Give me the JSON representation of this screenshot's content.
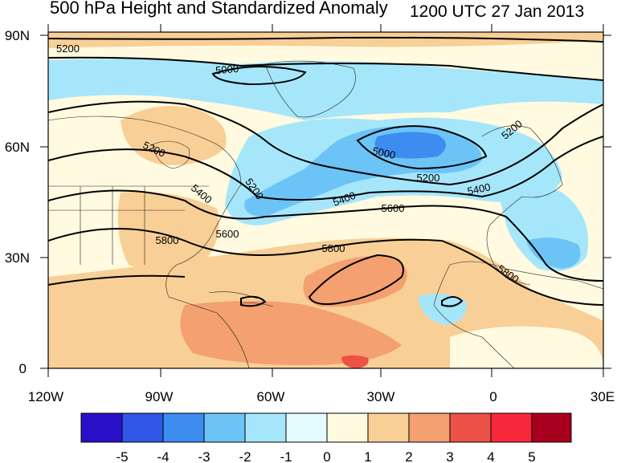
{
  "title": "500 hPa Height and Standardized Anomaly",
  "valid_time": "1200 UTC 27 Jan 2013",
  "lat_labels": [
    "90N",
    "60N",
    "30N",
    "0"
  ],
  "lon_labels": [
    "120W",
    "90W",
    "60W",
    "30W",
    "0",
    "30E"
  ],
  "contour_labels": [
    "5200",
    "5000",
    "5200",
    "5000",
    "5200",
    "5200",
    "5400",
    "5200",
    "5400",
    "5600",
    "5800",
    "5400",
    "5600",
    "5800",
    "5800"
  ],
  "colorbar": {
    "labels": [
      "-5",
      "-4",
      "-3",
      "-2",
      "-1",
      "0",
      "1",
      "2",
      "3",
      "4",
      "5"
    ],
    "colors": [
      "#2a10c8",
      "#2f58e6",
      "#3d8cf0",
      "#6cc4f6",
      "#a6e6fb",
      "#e4fbff",
      "#fffae0",
      "#f8cf96",
      "#f4a070",
      "#ec5248",
      "#f8283c",
      "#a8001e"
    ]
  }
}
